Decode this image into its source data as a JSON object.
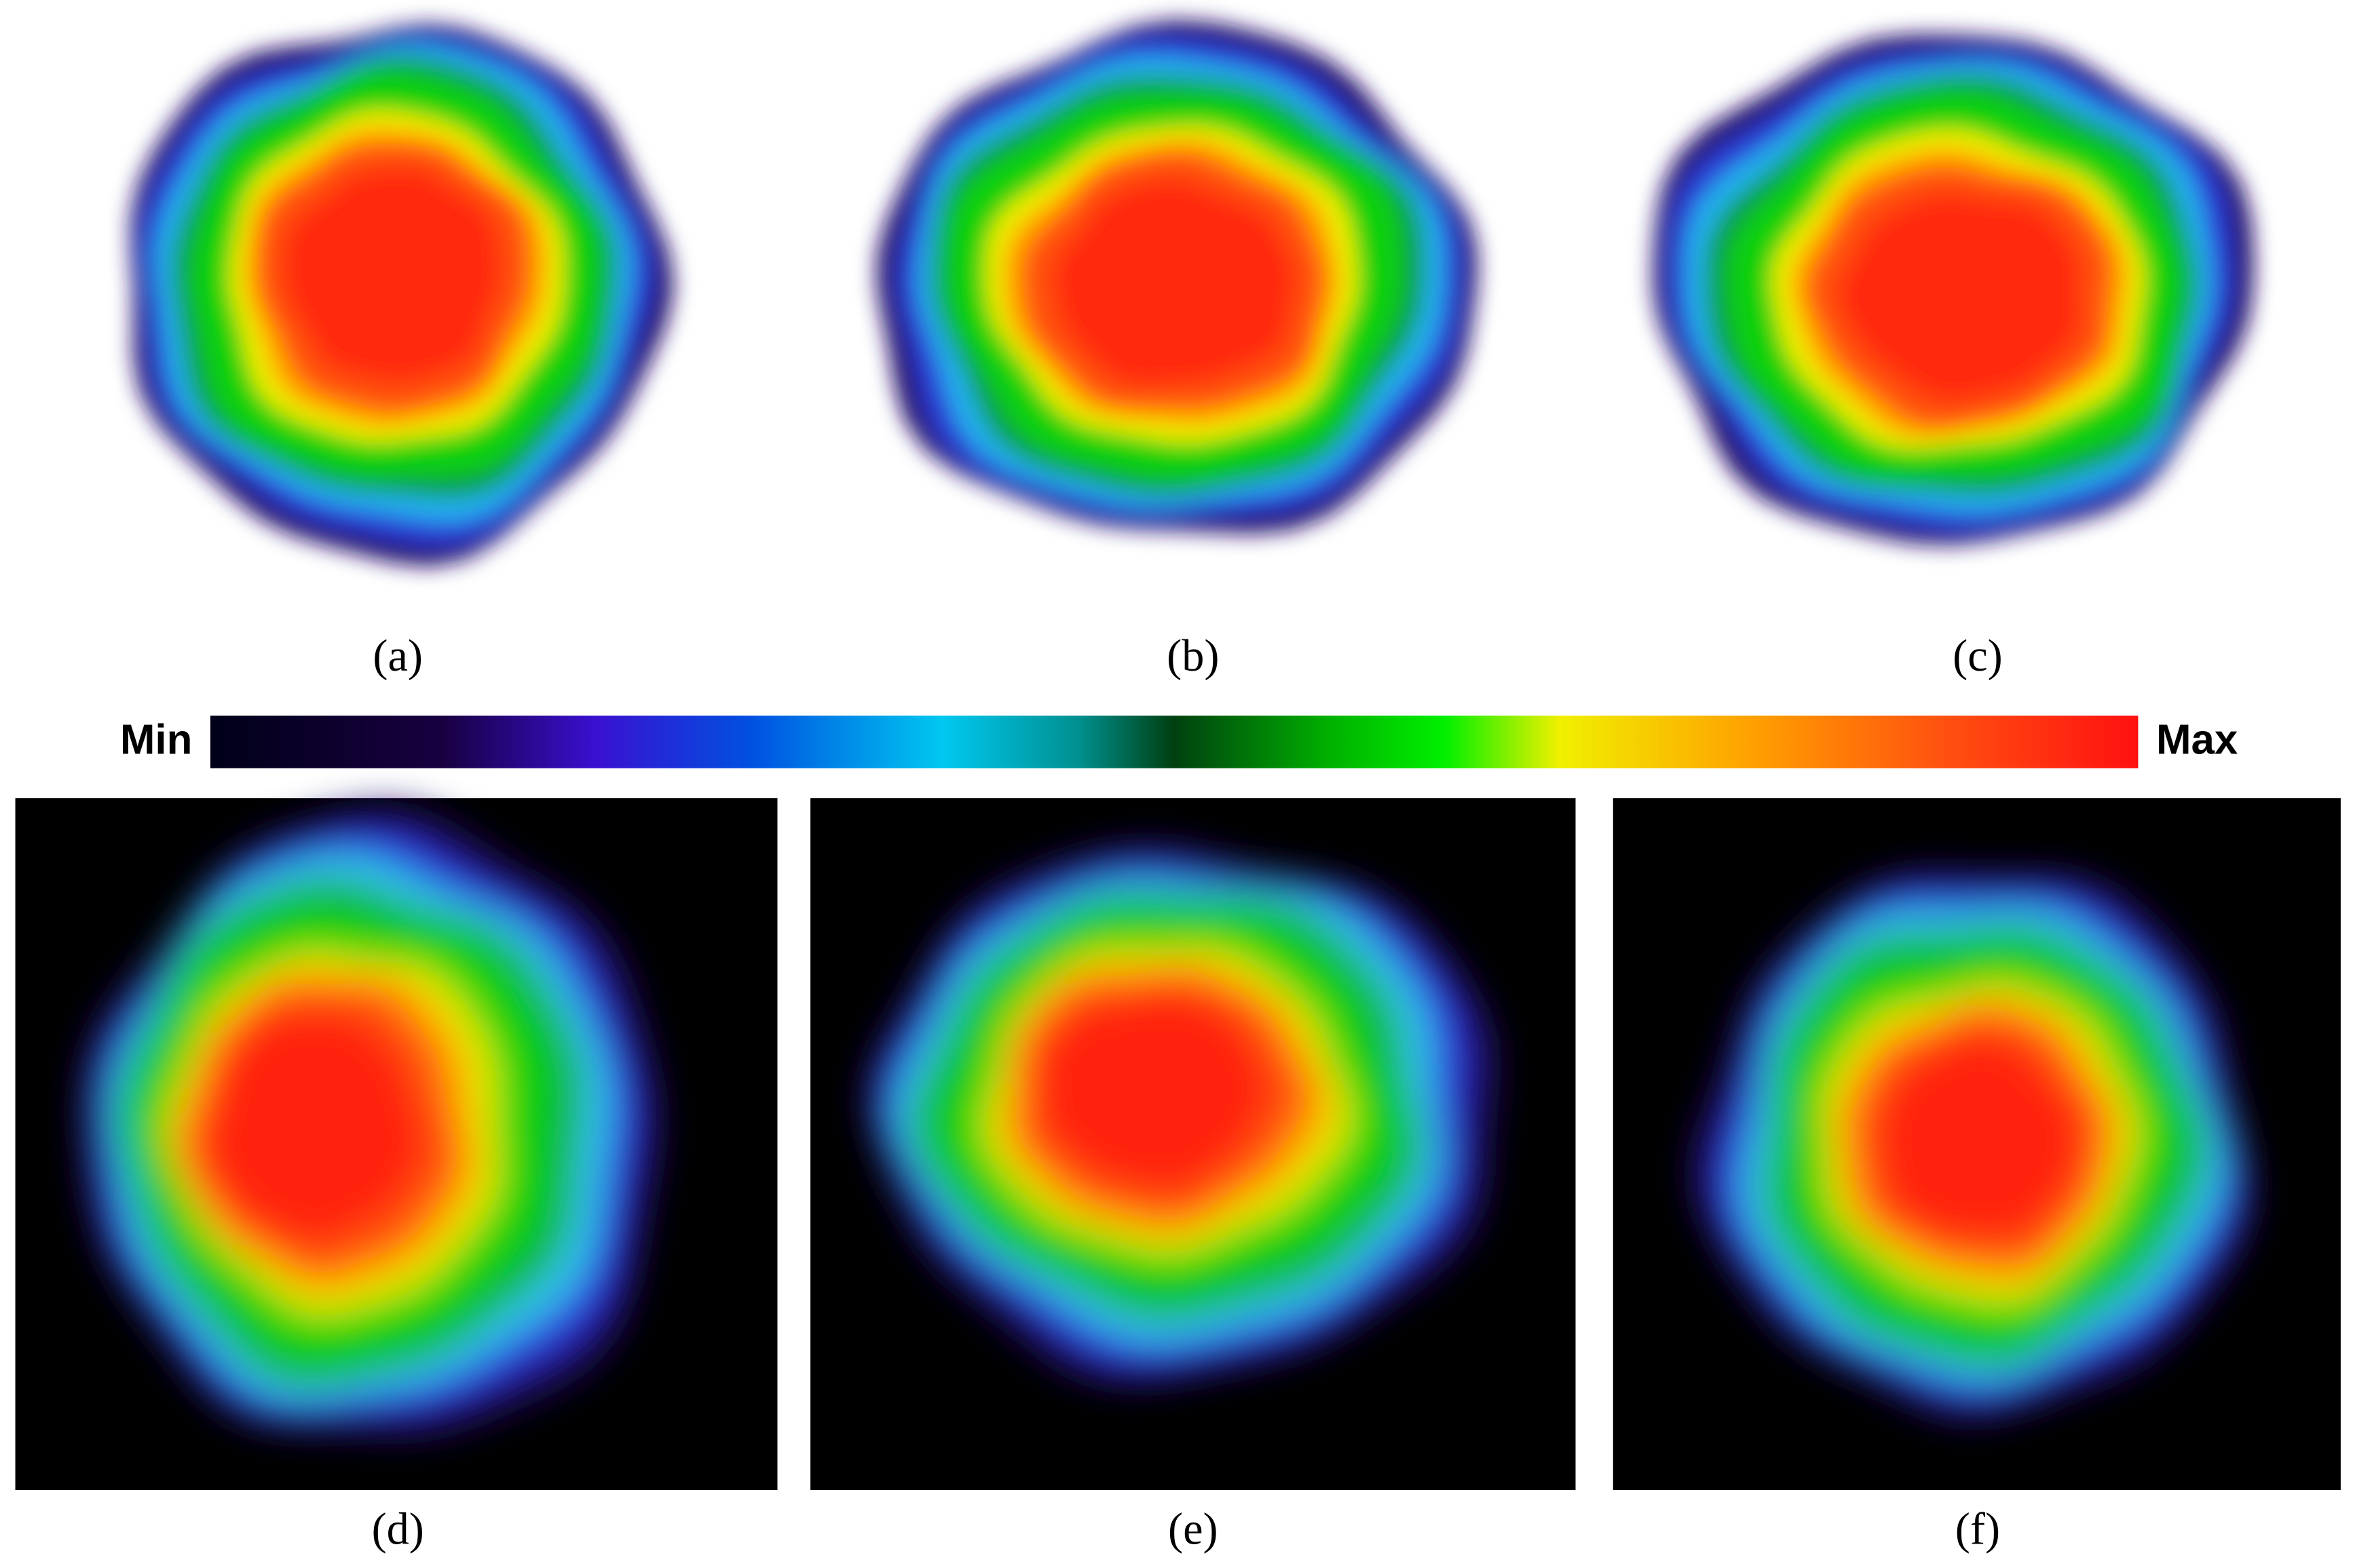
{
  "panels": [
    {
      "label": "(a)"
    },
    {
      "label": "(b)"
    },
    {
      "label": "(c)"
    },
    {
      "label": "(d)"
    },
    {
      "label": "(e)"
    },
    {
      "label": "(f)"
    }
  ],
  "colorbar": {
    "min_label": "Min",
    "max_label": "Max"
  }
}
